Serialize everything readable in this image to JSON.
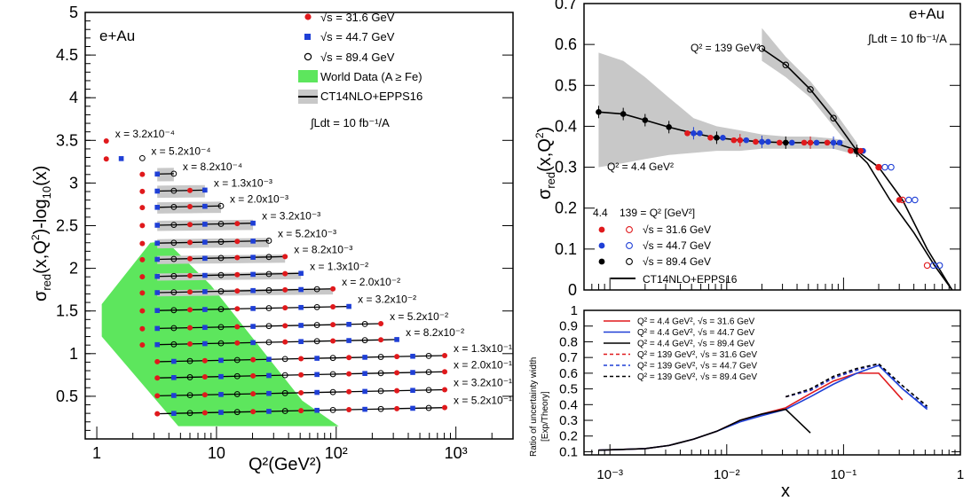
{
  "left_panel": {
    "corner_label": "e+Au",
    "lumi": "∫Ldt = 10 fb⁻¹/A",
    "legend": [
      {
        "label": "√s = 31.6 GeV",
        "marker": "red-dot"
      },
      {
        "label": "√s = 44.7 GeV",
        "marker": "blue-square"
      },
      {
        "label": "√s = 89.4 GeV",
        "marker": "black-open-circle"
      },
      {
        "label": "World Data (A ≥ Fe)",
        "marker": "green-box"
      },
      {
        "label": "CT14NLO+EPPS16",
        "marker": "gray-band-line"
      }
    ]
  },
  "right_top": {
    "corner_label": "e+Au",
    "lumi": "∫Ldt = 10 fb⁻¹/A",
    "curve_label_high": "Q² = 139 GeV²",
    "curve_label_low": "Q² = 4.4 GeV²",
    "legend_header_a": "4.4",
    "legend_header_b": "139 = Q² [GeV²]",
    "legend": [
      {
        "label": "√s = 31.6 GeV",
        "color": "#e0191c"
      },
      {
        "label": "√s = 44.7 GeV",
        "color": "#1f3fd6"
      },
      {
        "label": "√s = 89.4 GeV",
        "color": "#000000"
      }
    ],
    "legend_line": "CT14NLO+EPPS16"
  },
  "right_bottom": {
    "legend": [
      {
        "label": "Q² = 4.4 GeV², √s = 31.6 GeV",
        "color": "#e0191c",
        "dash": false
      },
      {
        "label": "Q² = 4.4 GeV², √s = 44.7 GeV",
        "color": "#1f3fd6",
        "dash": false
      },
      {
        "label": "Q² = 4.4 GeV², √s = 89.4 GeV",
        "color": "#000000",
        "dash": false
      },
      {
        "label": "Q² = 139 GeV², √s = 31.6 GeV",
        "color": "#e0191c",
        "dash": true
      },
      {
        "label": "Q² = 139 GeV², √s = 44.7 GeV",
        "color": "#1f3fd6",
        "dash": true
      },
      {
        "label": "Q² = 139 GeV², √s = 89.4 GeV",
        "color": "#000000",
        "dash": true
      }
    ]
  },
  "chart_data": [
    {
      "type": "scatter",
      "xlabel": "Q²(GeV²)",
      "ylabel": "σred(x,Q²)-log10(x)",
      "x_scale": "log",
      "xlim": [
        0.8,
        3000
      ],
      "ylim": [
        0,
        5
      ],
      "x_ticks": [
        "1",
        "10",
        "10²",
        "10³"
      ],
      "y_ticks": [
        "0.5",
        "1",
        "1.5",
        "2",
        "2.5",
        "3",
        "3.5",
        "4",
        "4.5",
        "5"
      ],
      "bins": [
        {
          "label": "x = 3.2x10⁻⁴",
          "offset": 3.49,
          "q2max": 1.3
        },
        {
          "label": "x = 5.2x10⁻⁴",
          "offset": 3.28,
          "q2max": 2.3
        },
        {
          "label": "x = 8.2x10⁻⁴",
          "offset": 3.09,
          "q2max": 4.5
        },
        {
          "label": "x = 1.3x10⁻³",
          "offset": 2.89,
          "q2max": 7.8
        },
        {
          "label": "x = 2.0x10⁻³",
          "offset": 2.7,
          "q2max": 13
        },
        {
          "label": "x = 3.2x10⁻³",
          "offset": 2.49,
          "q2max": 20
        },
        {
          "label": "x = 5.2x10⁻³",
          "offset": 2.28,
          "q2max": 27
        },
        {
          "label": "x = 8.2x10⁻³",
          "offset": 2.09,
          "q2max": 46
        },
        {
          "label": "x = 1.3x10⁻²",
          "offset": 1.89,
          "q2max": 58
        },
        {
          "label": "x = 2.0x10⁻²",
          "offset": 1.7,
          "q2max": 100
        },
        {
          "label": "x = 3.2x10⁻²",
          "offset": 1.49,
          "q2max": 150
        },
        {
          "label": "x = 5.2x10⁻²",
          "offset": 1.28,
          "q2max": 250
        },
        {
          "label": "x = 8.2x10⁻²",
          "offset": 1.09,
          "q2max": 380
        },
        {
          "label": "x = 1.3x10⁻¹",
          "offset": 0.89,
          "q2max": 850
        },
        {
          "label": "x = 2.0x10⁻¹",
          "offset": 0.7,
          "q2max": 850
        },
        {
          "label": "x = 3.2x10⁻¹",
          "offset": 0.49,
          "q2max": 850
        },
        {
          "label": "x = 5.2x10⁻¹",
          "offset": 0.28,
          "q2max": 850
        }
      ]
    },
    {
      "type": "line",
      "ylabel": "σred(x,Q²)",
      "x_scale": "log",
      "xlim": [
        0.0006,
        1
      ],
      "ylim": [
        0,
        0.7
      ],
      "y_ticks": [
        "0",
        "0.1",
        "0.2",
        "0.3",
        "0.4",
        "0.5",
        "0.6",
        "0.7"
      ],
      "series": [
        {
          "name": "Q² = 4.4 GeV²",
          "x": [
            0.0008,
            0.0013,
            0.002,
            0.0032,
            0.0052,
            0.0082,
            0.013,
            0.02,
            0.032,
            0.052,
            0.082,
            0.13
          ],
          "y": [
            0.435,
            0.43,
            0.415,
            0.398,
            0.383,
            0.372,
            0.366,
            0.362,
            0.36,
            0.36,
            0.36,
            0.34
          ]
        },
        {
          "name": "Q² = 139 GeV²",
          "x": [
            0.02,
            0.032,
            0.052,
            0.082,
            0.13,
            0.2,
            0.32,
            0.52
          ],
          "y": [
            0.59,
            0.55,
            0.49,
            0.42,
            0.34,
            0.3,
            0.22,
            0.06
          ]
        }
      ]
    },
    {
      "type": "line",
      "xlabel": "x",
      "ylabel": "Ratio of uncertainty width [Exp/Theory]",
      "x_scale": "log",
      "xlim": [
        0.0006,
        1
      ],
      "ylim": [
        0.08,
        1
      ],
      "x_ticks": [
        "10⁻³",
        "10⁻²",
        "10⁻¹",
        "1"
      ],
      "y_ticks": [
        "0.1",
        "0.2",
        "0.3",
        "0.4",
        "0.5",
        "0.6",
        "0.7",
        "0.8",
        "0.9",
        "1"
      ],
      "series": [
        {
          "name": "Q² = 4.4 GeV², √s = 31.6 GeV",
          "x": [
            0.0008,
            0.0013,
            0.002,
            0.0032,
            0.0052,
            0.0082,
            0.013,
            0.02,
            0.032,
            0.052,
            0.082,
            0.13,
            0.2,
            0.32
          ],
          "y": [
            0.11,
            0.115,
            0.12,
            0.14,
            0.18,
            0.23,
            0.3,
            0.34,
            0.38,
            0.47,
            0.55,
            0.6,
            0.6,
            0.43
          ]
        },
        {
          "name": "Q² = 4.4 GeV², √s = 44.7 GeV",
          "x": [
            0.0008,
            0.0013,
            0.002,
            0.0032,
            0.0052,
            0.0082,
            0.013,
            0.02,
            0.032,
            0.052,
            0.082,
            0.13,
            0.2,
            0.32,
            0.52
          ],
          "y": [
            0.11,
            0.115,
            0.12,
            0.14,
            0.18,
            0.23,
            0.29,
            0.33,
            0.37,
            0.45,
            0.53,
            0.6,
            0.65,
            0.5,
            0.37
          ]
        },
        {
          "name": "Q² = 4.4 GeV², √s = 89.4 GeV",
          "x": [
            0.0008,
            0.0013,
            0.002,
            0.0032,
            0.0052,
            0.0082,
            0.013,
            0.02,
            0.032,
            0.052
          ],
          "y": [
            0.11,
            0.115,
            0.12,
            0.14,
            0.18,
            0.23,
            0.3,
            0.34,
            0.37,
            0.22
          ]
        },
        {
          "name": "Q² = 139 GeV², √s = 31.6 GeV",
          "x": [
            0.032,
            0.052,
            0.082,
            0.13,
            0.2
          ],
          "y": [
            0.45,
            0.49,
            0.57,
            0.62,
            0.66
          ]
        },
        {
          "name": "Q² = 139 GeV², √s = 44.7 GeV",
          "x": [
            0.032,
            0.052,
            0.082,
            0.13,
            0.2,
            0.32,
            0.52
          ],
          "y": [
            0.45,
            0.49,
            0.57,
            0.62,
            0.66,
            0.5,
            0.38
          ]
        },
        {
          "name": "Q² = 139 GeV², √s = 89.4 GeV",
          "x": [
            0.032,
            0.052,
            0.082,
            0.13,
            0.2,
            0.32,
            0.52
          ],
          "y": [
            0.45,
            0.5,
            0.58,
            0.63,
            0.66,
            0.52,
            0.39
          ]
        }
      ]
    }
  ]
}
